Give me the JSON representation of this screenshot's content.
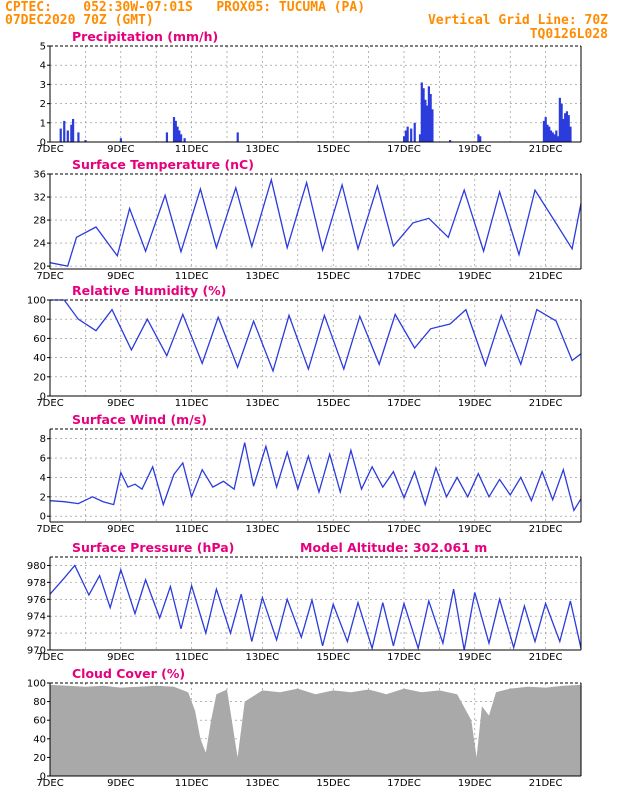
{
  "header": {
    "line1": "CPTEC:    052:30W-07:01S   PROX05: TUCUMA (PA)",
    "line2": "07DEC2020 70Z (GMT)",
    "grid_note": "Vertical Grid Line: 70Z",
    "code": "TQ0126L028",
    "altitude": "Model Altitude: 302.061 m"
  },
  "colors": {
    "header": "#ff8c00",
    "title": "#e6007e",
    "series": "#2b3bdc",
    "cloud": "#a9a9a9"
  },
  "x_axis": {
    "labels": [
      "7DEC",
      "9DEC",
      "11DEC",
      "13DEC",
      "15DEC",
      "17DEC",
      "19DEC",
      "21DEC"
    ],
    "start_day": 7,
    "end_day": 22
  },
  "chart_data": [
    {
      "type": "bar",
      "title": "Precipitation (mm/h)",
      "ylim": [
        0,
        5
      ],
      "yticks": [
        0,
        1,
        2,
        3,
        4,
        5
      ],
      "series": [
        {
          "x": [
            7.3,
            7.4,
            7.5,
            7.6,
            7.65,
            7.8,
            8.0,
            9.0,
            10.3,
            10.5,
            10.55,
            10.6,
            10.65,
            10.7,
            10.8,
            12.3,
            17.0,
            17.05,
            17.1,
            17.2,
            17.3,
            17.45,
            17.5,
            17.55,
            17.6,
            17.65,
            17.7,
            17.75,
            17.8,
            18.3,
            19.1,
            19.15,
            20.95,
            21.0,
            21.05,
            21.1,
            21.15,
            21.2,
            21.25,
            21.3,
            21.35,
            21.4,
            21.45,
            21.5,
            21.55,
            21.6,
            21.65,
            21.7
          ],
          "values": [
            0.7,
            1.1,
            0.6,
            0.9,
            1.2,
            0.5,
            0.1,
            0.2,
            0.5,
            1.3,
            1.1,
            0.8,
            0.6,
            0.4,
            0.2,
            0.5,
            0.3,
            0.6,
            0.8,
            0.7,
            1.0,
            0.4,
            3.1,
            2.8,
            2.2,
            1.9,
            2.9,
            2.5,
            1.7,
            0.1,
            0.4,
            0.3,
            1.1,
            1.3,
            0.9,
            0.8,
            0.6,
            0.5,
            0.4,
            0.6,
            0.3,
            2.3,
            2.0,
            1.2,
            1.5,
            1.6,
            1.4,
            0.8
          ]
        }
      ]
    },
    {
      "type": "line",
      "title": "Surface Temperature (nC)",
      "ylim": [
        19.5,
        36
      ],
      "yticks": [
        20,
        24,
        28,
        32,
        36
      ],
      "series": [
        {
          "x": [
            7.0,
            7.5,
            7.75,
            8.3,
            8.9,
            9.25,
            9.7,
            10.25,
            10.7,
            11.25,
            11.7,
            12.25,
            12.7,
            13.25,
            13.7,
            14.25,
            14.7,
            15.25,
            15.7,
            16.25,
            16.7,
            17.25,
            17.7,
            18.25,
            18.7,
            19.25,
            19.7,
            20.25,
            20.7,
            21.3,
            21.75,
            22.0
          ],
          "values": [
            20.6,
            20.0,
            25.0,
            26.8,
            21.8,
            30.0,
            22.6,
            32.3,
            22.5,
            33.4,
            23.2,
            33.6,
            23.4,
            35.0,
            23.2,
            34.5,
            22.8,
            34.1,
            23.0,
            33.9,
            23.5,
            27.5,
            28.3,
            25.0,
            33.2,
            22.6,
            32.9,
            22.0,
            33.2,
            27.4,
            23.0,
            30.9
          ]
        }
      ]
    },
    {
      "type": "line",
      "title": "Relative Humidity (%)",
      "ylim": [
        0,
        100
      ],
      "yticks": [
        0,
        20,
        40,
        60,
        80,
        100
      ],
      "series": [
        {
          "x": [
            7.0,
            7.4,
            7.8,
            8.3,
            8.75,
            9.3,
            9.75,
            10.3,
            10.75,
            11.3,
            11.75,
            12.3,
            12.75,
            13.3,
            13.75,
            14.3,
            14.75,
            15.3,
            15.75,
            16.3,
            16.75,
            17.3,
            17.75,
            18.3,
            18.75,
            19.3,
            19.75,
            20.3,
            20.75,
            21.3,
            21.75,
            22.0
          ],
          "values": [
            100,
            100,
            80,
            68,
            90,
            48,
            80,
            42,
            85,
            34,
            82,
            30,
            78,
            26,
            84,
            28,
            84,
            28,
            83,
            33,
            85,
            50,
            70,
            75,
            90,
            32,
            84,
            33,
            90,
            78,
            37,
            44
          ]
        }
      ]
    },
    {
      "type": "line",
      "title": "Surface Wind (m/s)",
      "ylim": [
        -0.6,
        9
      ],
      "yticks": [
        0,
        2,
        4,
        6,
        8
      ],
      "series": [
        {
          "x": [
            7.0,
            7.4,
            7.8,
            8.2,
            8.5,
            8.8,
            9.0,
            9.2,
            9.4,
            9.6,
            9.9,
            10.2,
            10.5,
            10.75,
            11.0,
            11.3,
            11.6,
            11.9,
            12.2,
            12.5,
            12.75,
            13.1,
            13.4,
            13.7,
            14.0,
            14.3,
            14.6,
            14.9,
            15.2,
            15.5,
            15.8,
            16.1,
            16.4,
            16.7,
            17.0,
            17.3,
            17.6,
            17.9,
            18.2,
            18.5,
            18.8,
            19.1,
            19.4,
            19.7,
            20.0,
            20.3,
            20.6,
            20.9,
            21.2,
            21.5,
            21.8,
            22.0
          ],
          "values": [
            1.6,
            1.5,
            1.3,
            2.0,
            1.5,
            1.2,
            4.5,
            3.0,
            3.3,
            2.8,
            5.1,
            1.2,
            4.3,
            5.5,
            2.0,
            4.8,
            3.0,
            3.6,
            2.8,
            7.6,
            3.1,
            7.2,
            3.0,
            6.6,
            2.8,
            6.2,
            2.5,
            6.4,
            2.5,
            6.8,
            2.8,
            5.1,
            3.0,
            4.6,
            1.9,
            4.6,
            1.2,
            5.0,
            2.0,
            4.0,
            2.0,
            4.4,
            2.0,
            3.8,
            2.2,
            4.0,
            1.6,
            4.6,
            1.7,
            4.8,
            0.6,
            1.8
          ]
        }
      ]
    },
    {
      "type": "line",
      "title": "Surface Pressure (hPa)",
      "ylim": [
        970,
        981
      ],
      "yticks": [
        970,
        972,
        974,
        976,
        978,
        980
      ],
      "series": [
        {
          "x": [
            7.0,
            7.4,
            7.7,
            8.1,
            8.4,
            8.7,
            9.0,
            9.4,
            9.7,
            10.1,
            10.4,
            10.7,
            11.0,
            11.4,
            11.7,
            12.1,
            12.4,
            12.7,
            13.0,
            13.4,
            13.7,
            14.1,
            14.4,
            14.7,
            15.0,
            15.4,
            15.7,
            16.1,
            16.4,
            16.7,
            17.0,
            17.4,
            17.7,
            18.1,
            18.4,
            18.7,
            19.0,
            19.4,
            19.7,
            20.1,
            20.4,
            20.7,
            21.0,
            21.4,
            21.7,
            22.0
          ],
          "values": [
            976.6,
            978.5,
            980.0,
            976.5,
            978.8,
            975.0,
            979.5,
            974.3,
            978.3,
            973.8,
            977.5,
            972.5,
            977.6,
            972.0,
            977.2,
            972.0,
            976.6,
            971.0,
            976.2,
            971.2,
            976.0,
            971.5,
            975.9,
            970.5,
            975.4,
            971.0,
            975.6,
            970.2,
            975.6,
            970.5,
            975.5,
            970.2,
            975.8,
            970.8,
            977.2,
            970.0,
            976.8,
            970.8,
            976.0,
            970.3,
            975.2,
            971.0,
            975.5,
            971.0,
            975.8,
            970.2
          ]
        }
      ]
    },
    {
      "type": "bar",
      "title": "Cloud Cover (%)",
      "ylim": [
        0,
        100
      ],
      "yticks": [
        0,
        20,
        40,
        60,
        80,
        100
      ],
      "series": [
        {
          "x": [
            7.0,
            7.5,
            8.0,
            8.5,
            9.0,
            9.5,
            10.0,
            10.5,
            10.9,
            11.1,
            11.25,
            11.4,
            11.55,
            11.7,
            12.0,
            12.3,
            12.5,
            13.0,
            13.5,
            14.0,
            14.5,
            15.0,
            15.5,
            16.0,
            16.5,
            17.0,
            17.5,
            18.0,
            18.5,
            18.9,
            19.05,
            19.2,
            19.4,
            19.6,
            20.0,
            20.5,
            21.0,
            21.5,
            22.0
          ],
          "values": [
            98,
            97,
            96,
            97,
            95,
            96,
            97,
            96,
            90,
            70,
            40,
            25,
            60,
            88,
            93,
            20,
            80,
            92,
            90,
            94,
            88,
            92,
            90,
            93,
            88,
            94,
            90,
            92,
            88,
            60,
            20,
            75,
            65,
            90,
            94,
            96,
            95,
            97,
            98
          ]
        }
      ]
    }
  ]
}
